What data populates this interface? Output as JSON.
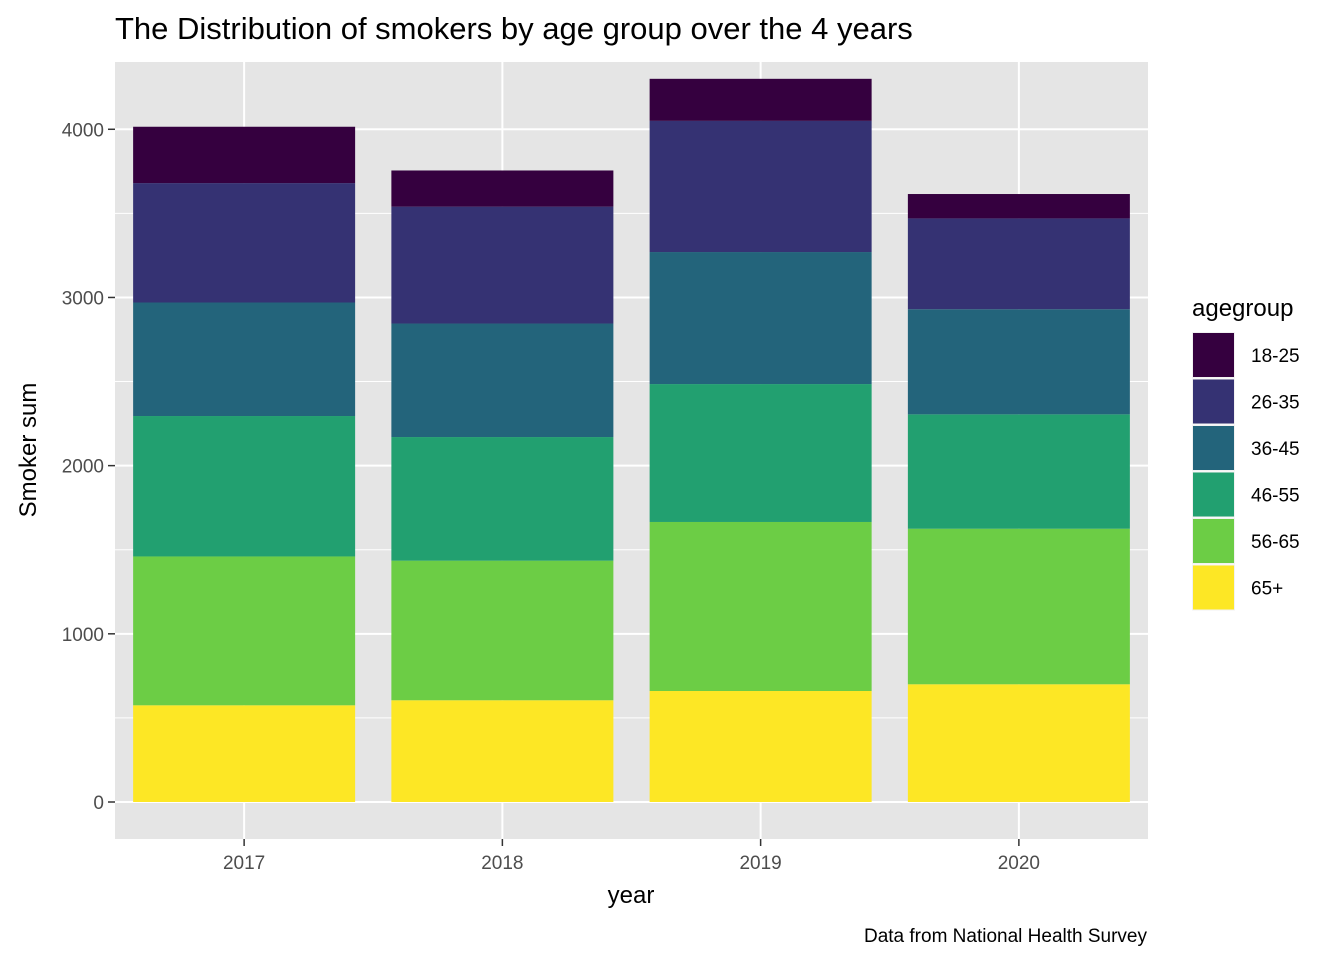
{
  "chart_data": {
    "type": "bar",
    "stacked": true,
    "title": "The Distribution of smokers by age group over the 4 years",
    "xlabel": "year",
    "ylabel": "Smoker sum",
    "caption": "Data from National Health Survey",
    "legend_title": "agegroup",
    "legend_position": "right",
    "grid": true,
    "ylim": [
      -220,
      4400
    ],
    "yticks": [
      "0",
      "1000",
      "2000",
      "3000",
      "4000"
    ],
    "ytick_values": [
      0,
      1000,
      2000,
      3000,
      4000
    ],
    "categories": [
      "2017",
      "2018",
      "2019",
      "2020"
    ],
    "series": [
      {
        "name": "65+",
        "color": "#FDE725",
        "values": [
          575,
          605,
          660,
          700
        ]
      },
      {
        "name": "56-65",
        "color": "#6CCD45",
        "values": [
          885,
          830,
          1005,
          925
        ]
      },
      {
        "name": "46-55",
        "color": "#22A070",
        "values": [
          835,
          735,
          820,
          680
        ]
      },
      {
        "name": "36-45",
        "color": "#23647B",
        "values": [
          675,
          675,
          785,
          625
        ]
      },
      {
        "name": "26-35",
        "color": "#353273",
        "values": [
          710,
          695,
          780,
          540
        ]
      },
      {
        "name": "18-25",
        "color": "#35003F",
        "values": [
          335,
          215,
          250,
          145
        ]
      }
    ],
    "legend_order": [
      "18-25",
      "26-35",
      "36-45",
      "46-55",
      "56-65",
      "65+"
    ],
    "colors": {
      "panel_background": "#E5E5E5",
      "grid": "#FFFFFF",
      "tick_text": "#4D4D4D"
    }
  }
}
